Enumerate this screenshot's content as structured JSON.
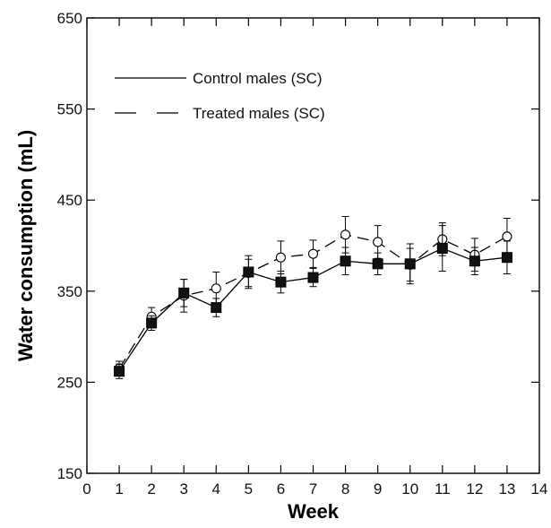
{
  "chart_data": {
    "type": "line",
    "title": "",
    "xlabel": "Week",
    "ylabel": "Water consumption (mL)",
    "xlim": [
      0,
      14
    ],
    "ylim": [
      150,
      650
    ],
    "xticks": [
      0,
      1,
      2,
      3,
      4,
      5,
      6,
      7,
      8,
      9,
      10,
      11,
      12,
      13,
      14
    ],
    "yticks": [
      150,
      250,
      350,
      450,
      550,
      650
    ],
    "grid": false,
    "legend_position": "top-left",
    "x": [
      1,
      2,
      3,
      4,
      5,
      6,
      7,
      8,
      9,
      10,
      11,
      12,
      13
    ],
    "series": [
      {
        "name": "Control males (SC)",
        "line_style": "solid",
        "marker": "filled-square",
        "color": "#000000",
        "values": [
          262,
          315,
          348,
          332,
          371,
          360,
          365,
          383,
          380,
          380,
          397,
          383,
          387
        ],
        "errors": [
          8,
          8,
          15,
          10,
          18,
          12,
          10,
          15,
          12,
          22,
          25,
          15,
          18
        ]
      },
      {
        "name": "Treated males (SC)",
        "line_style": "dashed",
        "marker": "open-circle",
        "color": "#000000",
        "values": [
          265,
          322,
          345,
          353,
          370,
          387,
          391,
          412,
          404,
          379,
          407,
          390,
          410
        ],
        "errors": [
          8,
          10,
          18,
          18,
          15,
          18,
          15,
          20,
          18,
          18,
          18,
          18,
          20
        ]
      }
    ]
  }
}
